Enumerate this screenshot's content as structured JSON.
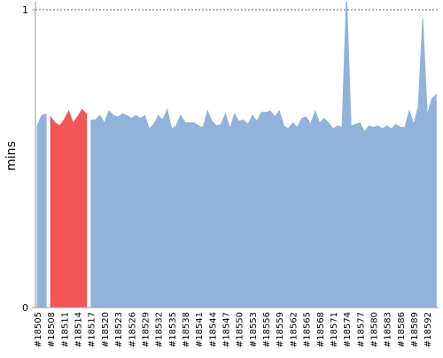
{
  "chart_data": {
    "type": "area",
    "y_label": "mins",
    "categories": [
      "#18505",
      null,
      null,
      "#18508",
      null,
      null,
      "#18511",
      null,
      null,
      "#18514",
      null,
      null,
      "#18517",
      null,
      null,
      "#18520",
      null,
      null,
      "#18523",
      null,
      null,
      "#18526",
      null,
      null,
      "#18529",
      null,
      null,
      "#18532",
      null,
      null,
      "#18535",
      null,
      null,
      "#18538",
      null,
      null,
      "#18541",
      null,
      null,
      "#18544",
      null,
      null,
      "#18547",
      null,
      null,
      "#18550",
      null,
      null,
      "#18553",
      null,
      null,
      "#18556",
      null,
      null,
      "#18559",
      null,
      null,
      "#18562",
      null,
      null,
      "#18565",
      null,
      null,
      "#18568",
      null,
      null,
      "#18571",
      null,
      null,
      "#18574",
      null,
      null,
      "#18577",
      null,
      null,
      "#18580",
      null,
      null,
      "#18583",
      null,
      null,
      "#18586",
      null,
      null,
      "#18589",
      null,
      null,
      "#18592",
      null,
      null
    ],
    "series": [
      {
        "color": "#91b3db",
        "values": [
          0.61,
          0.645,
          0.65,
          null,
          null,
          null,
          null,
          null,
          null,
          null,
          null,
          null,
          0.63,
          0.63,
          0.645,
          0.62,
          0.66,
          0.645,
          0.64,
          0.65,
          0.645,
          0.635,
          0.645,
          0.635,
          0.645,
          0.6,
          0.615,
          0.645,
          0.63,
          0.665,
          0.6,
          0.61,
          0.645,
          0.62,
          0.62,
          0.62,
          0.61,
          0.605,
          0.66,
          0.625,
          0.61,
          0.615,
          0.65,
          0.6,
          0.65,
          0.625,
          0.63,
          0.615,
          0.645,
          0.625,
          0.655,
          0.655,
          0.66,
          0.64,
          0.66,
          0.61,
          0.6,
          0.62,
          0.605,
          0.635,
          0.64,
          0.615,
          0.66,
          0.62,
          0.635,
          0.62,
          0.6,
          0.61,
          0.605,
          1.05,
          0.61,
          0.615,
          0.62,
          0.59,
          0.61,
          0.605,
          0.61,
          0.6,
          0.61,
          0.6,
          0.615,
          0.605,
          0.605,
          0.66,
          0.615,
          0.675,
          0.97,
          0.645,
          0.7,
          0.715
        ]
      },
      {
        "color": "#f25555",
        "values": [
          null,
          null,
          null,
          0.64,
          0.62,
          0.61,
          0.63,
          0.66,
          0.62,
          0.64,
          0.665,
          0.65,
          null,
          null,
          null,
          null,
          null,
          null,
          null,
          null,
          null,
          null,
          null,
          null,
          null,
          null,
          null,
          null,
          null,
          null,
          null,
          null,
          null,
          null,
          null,
          null,
          null,
          null,
          null,
          null,
          null,
          null,
          null,
          null,
          null,
          null,
          null,
          null,
          null,
          null,
          null,
          null,
          null,
          null,
          null,
          null,
          null,
          null,
          null,
          null,
          null,
          null,
          null,
          null,
          null,
          null,
          null,
          null,
          null,
          null,
          null,
          null,
          null,
          null,
          null,
          null,
          null,
          null,
          null,
          null,
          null,
          null,
          null,
          null,
          null,
          null,
          null,
          null,
          null,
          null
        ]
      }
    ],
    "ylim": [
      0,
      1
    ],
    "yticks": [
      0,
      1
    ],
    "grid": true
  }
}
